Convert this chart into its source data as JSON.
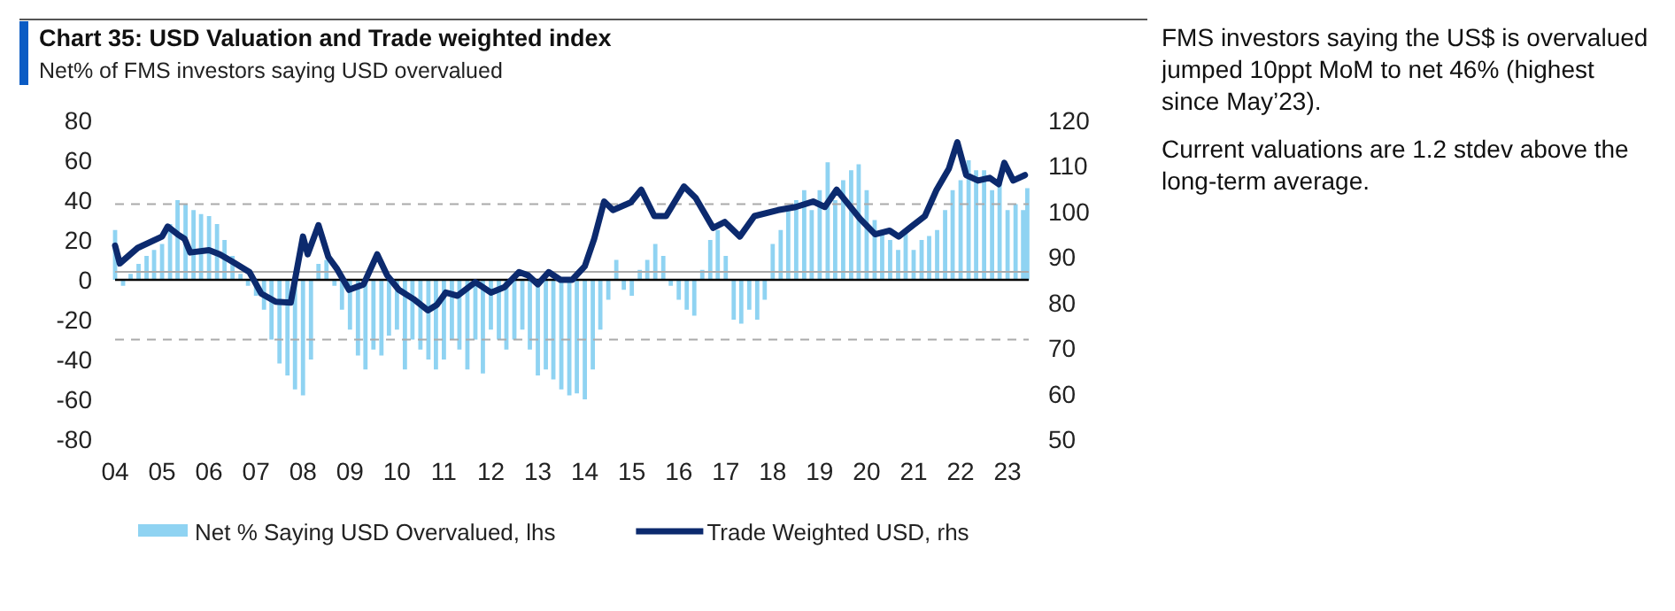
{
  "chart_data": {
    "type": "bar",
    "title": "Chart 35: USD Valuation and Trade weighted index",
    "subtitle": "Net% of FMS investors saying USD overvalued",
    "annotations": [
      "FMS investors saying the US$ is overvalued jumped 10ppt MoM to net 46% (highest since May’23).",
      "Current valuations are 1.2 stdev above the long-term average."
    ],
    "xlim": [
      2004,
      2023.45
    ],
    "xticks": [
      {
        "value": 2004,
        "label": "04"
      },
      {
        "value": 2005,
        "label": "05"
      },
      {
        "value": 2006,
        "label": "06"
      },
      {
        "value": 2007,
        "label": "07"
      },
      {
        "value": 2008,
        "label": "08"
      },
      {
        "value": 2009,
        "label": "09"
      },
      {
        "value": 2010,
        "label": "10"
      },
      {
        "value": 2011,
        "label": "11"
      },
      {
        "value": 2012,
        "label": "12"
      },
      {
        "value": 2013,
        "label": "13"
      },
      {
        "value": 2014,
        "label": "14"
      },
      {
        "value": 2015,
        "label": "15"
      },
      {
        "value": 2016,
        "label": "16"
      },
      {
        "value": 2017,
        "label": "17"
      },
      {
        "value": 2018,
        "label": "18"
      },
      {
        "value": 2019,
        "label": "19"
      },
      {
        "value": 2020,
        "label": "20"
      },
      {
        "value": 2021,
        "label": "21"
      },
      {
        "value": 2022,
        "label": "22"
      },
      {
        "value": 2023,
        "label": "23"
      }
    ],
    "ylim": [
      -80,
      80
    ],
    "yticks": [
      -80,
      -60,
      -40,
      -20,
      0,
      20,
      40,
      60,
      80
    ],
    "y2lim": [
      50,
      120
    ],
    "y2ticks": [
      50,
      60,
      70,
      80,
      90,
      100,
      110,
      120
    ],
    "grid": false,
    "legend": "bottom",
    "ref_lines": [
      {
        "axis": "y",
        "value": 38,
        "color": "#aaaaaa",
        "line_style": "dashed"
      },
      {
        "axis": "y",
        "value": -30,
        "color": "#aaaaaa",
        "line_style": "dashed"
      },
      {
        "axis": "y",
        "value": 4,
        "color": "#aaaaaa",
        "line_style": "solid"
      },
      {
        "axis": "y",
        "value": 0,
        "color": "#000000",
        "line_style": "solid"
      }
    ],
    "series": [
      {
        "name": "Net % Saying USD Overvalued, lhs",
        "color": "#8fd3f2",
        "x": [
          2004,
          2004.17,
          2004.33,
          2004.5,
          2004.67,
          2004.83,
          2005,
          2005.17,
          2005.33,
          2005.5,
          2005.67,
          2005.83,
          2006,
          2006.17,
          2006.33,
          2006.5,
          2006.67,
          2006.83,
          2007,
          2007.17,
          2007.33,
          2007.5,
          2007.67,
          2007.83,
          2008,
          2008.17,
          2008.33,
          2008.5,
          2008.67,
          2008.83,
          2009,
          2009.17,
          2009.33,
          2009.5,
          2009.67,
          2009.83,
          2010,
          2010.17,
          2010.33,
          2010.5,
          2010.67,
          2010.83,
          2011,
          2011.17,
          2011.33,
          2011.5,
          2011.67,
          2011.83,
          2012,
          2012.17,
          2012.33,
          2012.5,
          2012.67,
          2012.83,
          2013,
          2013.17,
          2013.33,
          2013.5,
          2013.67,
          2013.83,
          2014,
          2014.17,
          2014.33,
          2014.5,
          2014.67,
          2014.83,
          2015,
          2015.17,
          2015.33,
          2015.5,
          2015.67,
          2015.83,
          2016,
          2016.17,
          2016.33,
          2016.5,
          2016.67,
          2016.83,
          2017,
          2017.17,
          2017.33,
          2017.5,
          2017.67,
          2017.83,
          2018,
          2018.17,
          2018.33,
          2018.5,
          2018.67,
          2018.83,
          2019,
          2019.17,
          2019.33,
          2019.5,
          2019.67,
          2019.83,
          2020,
          2020.17,
          2020.33,
          2020.5,
          2020.67,
          2020.83,
          2021,
          2021.17,
          2021.33,
          2021.5,
          2021.67,
          2021.83,
          2022,
          2022.17,
          2022.33,
          2022.5,
          2022.67,
          2022.83,
          2023,
          2023.17,
          2023.33,
          2023.42
        ],
        "values": [
          25,
          -3,
          3,
          8,
          12,
          15,
          18,
          28,
          40,
          38,
          35,
          33,
          32,
          28,
          20,
          12,
          3,
          -3,
          -8,
          -15,
          -30,
          -42,
          -48,
          -55,
          -58,
          -40,
          8,
          10,
          -3,
          -15,
          -25,
          -38,
          -45,
          -35,
          -38,
          -28,
          -25,
          -45,
          -30,
          -35,
          -40,
          -45,
          -40,
          -30,
          -35,
          -45,
          -30,
          -47,
          -25,
          -30,
          -35,
          -30,
          -25,
          -35,
          -48,
          -45,
          -50,
          -55,
          -58,
          -57,
          -60,
          -45,
          -25,
          -10,
          10,
          -5,
          -8,
          5,
          10,
          18,
          12,
          -3,
          -10,
          -15,
          -18,
          5,
          20,
          25,
          12,
          -20,
          -22,
          -15,
          -20,
          -10,
          18,
          25,
          35,
          40,
          45,
          35,
          45,
          59,
          40,
          50,
          55,
          58,
          45,
          30,
          25,
          20,
          15,
          25,
          15,
          20,
          22,
          25,
          35,
          45,
          50,
          60,
          55,
          55,
          45,
          50,
          35,
          38,
          35,
          46
        ]
      },
      {
        "name": "Trade Weighted USD, rhs",
        "type": "line",
        "axis": "y2",
        "color": "#0c2a6e",
        "x": [
          2004,
          2004.1,
          2004.48,
          2005,
          2005.12,
          2005.33,
          2005.48,
          2005.6,
          2006,
          2006.23,
          2006.56,
          2006.86,
          2007.11,
          2007.42,
          2007.74,
          2008,
          2008.1,
          2008.33,
          2008.54,
          2008.73,
          2008.98,
          2009.29,
          2009.58,
          2009.79,
          2010.04,
          2010.35,
          2010.66,
          2010.85,
          2011.04,
          2011.29,
          2011.67,
          2012,
          2012.29,
          2012.6,
          2012.79,
          2013,
          2013.23,
          2013.48,
          2013.73,
          2014,
          2014.2,
          2014.41,
          2014.6,
          2014.98,
          2015.2,
          2015.48,
          2015.73,
          2016.11,
          2016.36,
          2016.73,
          2016.98,
          2017.3,
          2017.61,
          2018.11,
          2018.49,
          2018.86,
          2019.11,
          2019.36,
          2019.61,
          2019.86,
          2020.18,
          2020.49,
          2020.68,
          2020.99,
          2021.24,
          2021.49,
          2021.75,
          2021.93,
          2022.12,
          2022.37,
          2022.62,
          2022.81,
          2022.93,
          2023.12,
          2023.37
        ],
        "values": [
          92.5,
          88.6,
          92,
          94.5,
          96.7,
          95,
          94,
          91,
          91.5,
          90.6,
          88.6,
          86.7,
          82,
          80.2,
          80,
          94.5,
          90.6,
          97,
          90,
          87.3,
          82.8,
          84,
          90.6,
          86,
          82.8,
          80.8,
          78.3,
          79.5,
          82.2,
          81.5,
          84.5,
          82.2,
          83.4,
          86.7,
          86,
          84,
          86.7,
          85,
          85,
          88,
          94,
          102.2,
          100.3,
          102,
          104.8,
          99,
          99,
          105.5,
          103,
          96.4,
          97.7,
          94.5,
          99,
          100.3,
          101,
          102.2,
          101,
          104.8,
          101.6,
          98.4,
          95,
          95.8,
          94.5,
          97,
          99,
          104.8,
          109.4,
          115.2,
          108,
          106.8,
          107.4,
          106,
          110.7,
          106.8,
          108
        ]
      }
    ]
  }
}
